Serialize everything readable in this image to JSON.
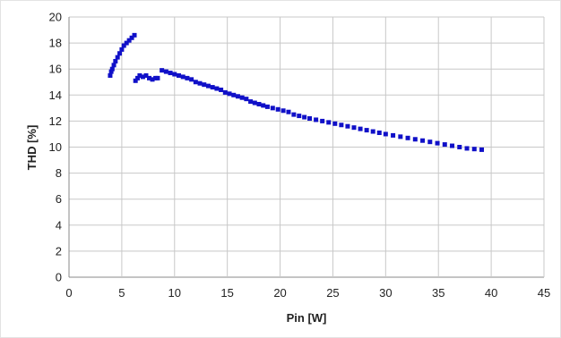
{
  "chart_data": {
    "type": "scatter",
    "title": "",
    "xlabel": "Pin [W]",
    "ylabel": "THD [%]",
    "xlim": [
      0,
      45
    ],
    "ylim": [
      0,
      20
    ],
    "xticks": [
      "0",
      "5",
      "10",
      "15",
      "20",
      "25",
      "30",
      "35",
      "40",
      "45"
    ],
    "yticks": [
      "0",
      "2",
      "4",
      "6",
      "8",
      "10",
      "12",
      "14",
      "16",
      "18",
      "20"
    ],
    "grid": true,
    "legend": "none",
    "marker_color": "#1010c8",
    "series": [
      {
        "points": [
          [
            3.9,
            15.5
          ],
          [
            4.0,
            15.8
          ],
          [
            4.1,
            16.0
          ],
          [
            4.25,
            16.3
          ],
          [
            4.4,
            16.6
          ],
          [
            4.6,
            16.9
          ],
          [
            4.8,
            17.2
          ],
          [
            5.0,
            17.5
          ],
          [
            5.2,
            17.8
          ],
          [
            5.45,
            18.0
          ],
          [
            5.7,
            18.2
          ],
          [
            5.95,
            18.4
          ],
          [
            6.2,
            18.6
          ],
          [
            6.3,
            15.1
          ],
          [
            6.5,
            15.3
          ],
          [
            6.7,
            15.5
          ],
          [
            7.0,
            15.4
          ],
          [
            7.3,
            15.5
          ],
          [
            7.6,
            15.3
          ],
          [
            7.9,
            15.2
          ],
          [
            8.2,
            15.3
          ],
          [
            8.4,
            15.3
          ],
          [
            8.8,
            15.9
          ],
          [
            9.2,
            15.8
          ],
          [
            9.6,
            15.7
          ],
          [
            10.0,
            15.6
          ],
          [
            10.4,
            15.5
          ],
          [
            10.8,
            15.4
          ],
          [
            11.2,
            15.3
          ],
          [
            11.6,
            15.2
          ],
          [
            12.0,
            15.0
          ],
          [
            12.4,
            14.9
          ],
          [
            12.8,
            14.8
          ],
          [
            13.2,
            14.7
          ],
          [
            13.6,
            14.6
          ],
          [
            14.0,
            14.5
          ],
          [
            14.4,
            14.4
          ],
          [
            14.8,
            14.2
          ],
          [
            15.2,
            14.1
          ],
          [
            15.6,
            14.0
          ],
          [
            16.0,
            13.9
          ],
          [
            16.4,
            13.8
          ],
          [
            16.8,
            13.7
          ],
          [
            17.2,
            13.5
          ],
          [
            17.6,
            13.4
          ],
          [
            18.0,
            13.3
          ],
          [
            18.4,
            13.2
          ],
          [
            18.8,
            13.1
          ],
          [
            19.3,
            13.0
          ],
          [
            19.8,
            12.9
          ],
          [
            20.3,
            12.8
          ],
          [
            20.8,
            12.7
          ],
          [
            21.3,
            12.5
          ],
          [
            21.8,
            12.4
          ],
          [
            22.3,
            12.3
          ],
          [
            22.8,
            12.2
          ],
          [
            23.4,
            12.1
          ],
          [
            24.0,
            12.0
          ],
          [
            24.6,
            11.9
          ],
          [
            25.2,
            11.8
          ],
          [
            25.8,
            11.7
          ],
          [
            26.4,
            11.6
          ],
          [
            27.0,
            11.5
          ],
          [
            27.6,
            11.4
          ],
          [
            28.2,
            11.3
          ],
          [
            28.8,
            11.2
          ],
          [
            29.4,
            11.1
          ],
          [
            30.0,
            11.0
          ],
          [
            30.7,
            10.9
          ],
          [
            31.4,
            10.8
          ],
          [
            32.1,
            10.7
          ],
          [
            32.8,
            10.6
          ],
          [
            33.5,
            10.5
          ],
          [
            34.2,
            10.4
          ],
          [
            34.9,
            10.3
          ],
          [
            35.6,
            10.2
          ],
          [
            36.3,
            10.1
          ],
          [
            37.0,
            10.0
          ],
          [
            37.7,
            9.9
          ],
          [
            38.4,
            9.85
          ],
          [
            39.1,
            9.8
          ]
        ]
      }
    ]
  }
}
